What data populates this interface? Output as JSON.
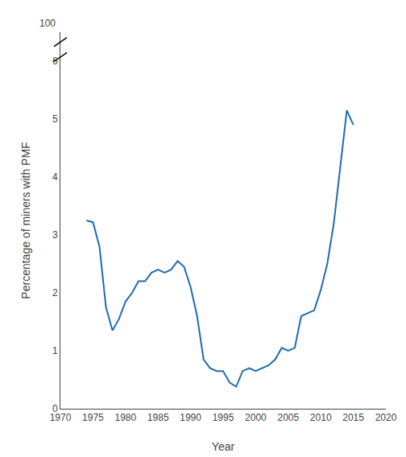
{
  "chart_data": {
    "type": "line",
    "x": [
      1974,
      1975,
      1976,
      1977,
      1978,
      1979,
      1980,
      1981,
      1982,
      1983,
      1984,
      1985,
      1986,
      1987,
      1988,
      1989,
      1990,
      1991,
      1992,
      1993,
      1994,
      1995,
      1996,
      1997,
      1998,
      1999,
      2000,
      2001,
      2002,
      2003,
      2004,
      2005,
      2006,
      2007,
      2008,
      2009,
      2010,
      2011,
      2012,
      2013,
      2014,
      2015
    ],
    "values": [
      3.25,
      3.22,
      2.8,
      1.75,
      1.35,
      1.55,
      1.85,
      2.0,
      2.2,
      2.2,
      2.35,
      2.4,
      2.35,
      2.4,
      2.55,
      2.45,
      2.1,
      1.6,
      0.85,
      0.7,
      0.65,
      0.65,
      0.45,
      0.38,
      0.65,
      0.7,
      0.65,
      0.7,
      0.75,
      0.85,
      1.05,
      1.0,
      1.05,
      1.6,
      1.65,
      1.7,
      2.05,
      2.5,
      3.2,
      4.2,
      5.15,
      4.9
    ],
    "color": "#1f6cb0",
    "xlabel": "Year",
    "ylabel": "Percentage of miners with PMF",
    "xlim": [
      1970,
      2020
    ],
    "xticks": [
      1970,
      1975,
      1980,
      1985,
      1990,
      1995,
      2000,
      2005,
      2010,
      2015,
      2020
    ],
    "ylim": [
      0,
      6.5
    ],
    "yticks": [
      0,
      1,
      2,
      3,
      4,
      5,
      6
    ],
    "annotations": [
      {
        "text": "100"
      }
    ],
    "grid": false
  }
}
